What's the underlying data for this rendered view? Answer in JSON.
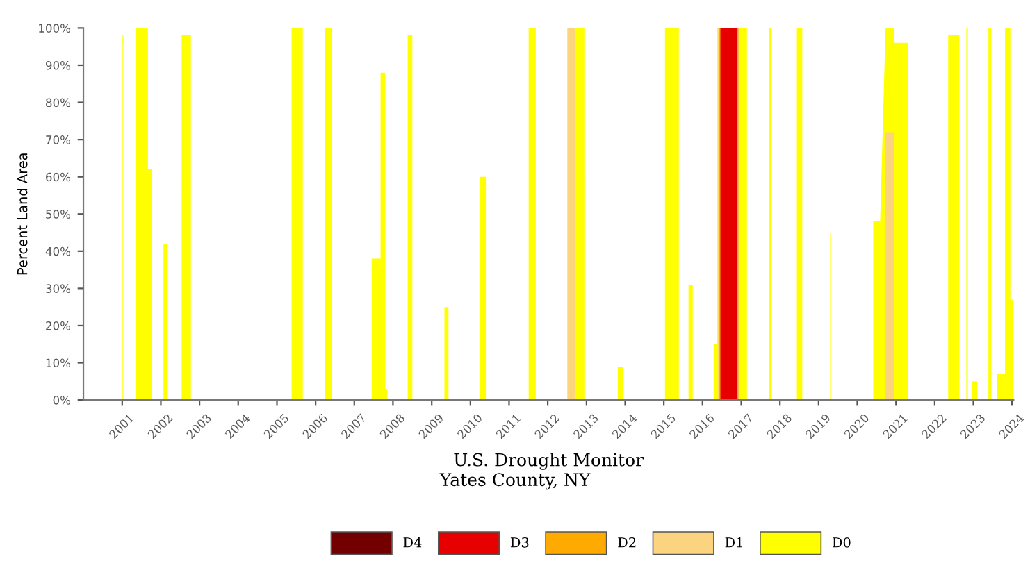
{
  "chart_data": {
    "type": "area",
    "xlabel": "U.S. Drought Monitor",
    "subtitle": "Yates County, NY",
    "ylabel": "Percent Land Area",
    "xlim": [
      "2000-01-01",
      "2024-01-15"
    ],
    "xticks": [
      {
        "value": "2001-01-01",
        "label": "2001"
      },
      {
        "value": "2002-01-01",
        "label": "2002"
      },
      {
        "value": "2003-01-01",
        "label": "2003"
      },
      {
        "value": "2004-01-01",
        "label": "2004"
      },
      {
        "value": "2005-01-01",
        "label": "2005"
      },
      {
        "value": "2006-01-01",
        "label": "2006"
      },
      {
        "value": "2007-01-01",
        "label": "2007"
      },
      {
        "value": "2008-01-01",
        "label": "2008"
      },
      {
        "value": "2009-01-01",
        "label": "2009"
      },
      {
        "value": "2010-01-01",
        "label": "2010"
      },
      {
        "value": "2011-01-01",
        "label": "2011"
      },
      {
        "value": "2012-01-01",
        "label": "2012"
      },
      {
        "value": "2013-01-01",
        "label": "2013"
      },
      {
        "value": "2014-01-01",
        "label": "2014"
      },
      {
        "value": "2015-01-01",
        "label": "2015"
      },
      {
        "value": "2016-01-01",
        "label": "2016"
      },
      {
        "value": "2017-01-01",
        "label": "2017"
      },
      {
        "value": "2018-01-01",
        "label": "2018"
      },
      {
        "value": "2019-01-01",
        "label": "2019"
      },
      {
        "value": "2020-01-01",
        "label": "2020"
      },
      {
        "value": "2021-01-01",
        "label": "2021"
      },
      {
        "value": "2022-01-01",
        "label": "2022"
      },
      {
        "value": "2023-01-01",
        "label": "2023"
      },
      {
        "value": "2024-01-01",
        "label": "2024"
      }
    ],
    "ylim": [
      0,
      100
    ],
    "yticks": [
      {
        "value": 0,
        "label": "0%"
      },
      {
        "value": 10,
        "label": "10%"
      },
      {
        "value": 20,
        "label": "20%"
      },
      {
        "value": 30,
        "label": "30%"
      },
      {
        "value": 40,
        "label": "40%"
      },
      {
        "value": 50,
        "label": "50%"
      },
      {
        "value": 60,
        "label": "60%"
      },
      {
        "value": 70,
        "label": "70%"
      },
      {
        "value": 80,
        "label": "80%"
      },
      {
        "value": 90,
        "label": "90%"
      },
      {
        "value": 100,
        "label": "100%"
      }
    ],
    "legend": "bottom",
    "grid": false,
    "series": [
      {
        "name": "D4",
        "color": "#730000"
      },
      {
        "name": "D3",
        "color": "#e60000",
        "x": [
          "2016-06-18",
          "2016-06-18",
          "2016-11-24",
          "2016-11-24"
        ],
        "values": [
          0,
          100,
          100,
          0
        ]
      },
      {
        "name": "D2",
        "color": "#ffaa00",
        "x": [
          "2016-06-04",
          "2016-06-04",
          "2016-12-05",
          "2016-12-05"
        ],
        "values": [
          0,
          100,
          100,
          0
        ]
      },
      {
        "name": "D1",
        "color": "#fcd37f",
        "x": [
          "2012-07-09",
          "2012-07-09",
          "2012-09-13",
          "2012-09-13",
          "2016-05-27",
          "2016-05-27",
          "2016-12-12",
          "2016-12-12",
          "2020-09-24",
          "2020-09-24",
          "2020-12-12",
          "2020-12-12"
        ],
        "values": [
          0,
          100,
          100,
          0,
          0,
          100,
          100,
          0,
          0,
          72,
          72,
          0
        ]
      },
      {
        "name": "D0",
        "color": "#ffff00",
        "x": [
          "2001-01-04",
          "2001-01-04",
          "2001-01-12",
          "2001-01-12",
          "2001-05-08",
          "2001-05-08",
          "2001-09-01",
          "2001-09-01",
          "2001-10-05",
          "2001-10-05",
          "2002-01-26",
          "2002-01-26",
          "2002-02-28",
          "2002-02-28",
          "2002-07-16",
          "2002-07-16",
          "2002-10-12",
          "2002-10-12",
          "2005-05-19",
          "2005-05-19",
          "2005-09-02",
          "2005-09-02",
          "2006-03-28",
          "2006-03-28",
          "2006-06-04",
          "2006-06-04",
          "2007-06-14",
          "2007-06-14",
          "2007-09-06",
          "2007-09-06",
          "2007-10-20",
          "2007-10-20",
          "2007-11-10",
          "2007-11-10",
          "2008-05-19",
          "2008-05-19",
          "2008-07-02",
          "2008-07-02",
          "2009-05-01",
          "2009-05-01",
          "2009-06-08",
          "2009-06-08",
          "2010-04-04",
          "2010-04-04",
          "2010-05-27",
          "2010-05-27",
          "2011-07-05",
          "2011-07-05",
          "2011-09-10",
          "2011-09-10",
          "2012-07-02",
          "2012-07-02",
          "2012-12-12",
          "2012-12-12",
          "2013-10-23",
          "2013-10-23",
          "2013-12-12",
          "2013-12-12",
          "2015-01-12",
          "2015-01-12",
          "2015-05-23",
          "2015-05-23",
          "2015-08-22",
          "2015-08-22",
          "2015-10-01",
          "2015-10-01",
          "2016-04-15",
          "2016-04-15",
          "2016-05-20",
          "2016-05-20",
          "2017-02-24",
          "2017-02-24",
          "2017-09-20",
          "2017-09-20",
          "2017-10-16",
          "2017-10-16",
          "2018-06-10",
          "2018-06-10",
          "2018-07-31",
          "2018-07-31",
          "2019-04-20",
          "2019-04-20",
          "2019-05-01",
          "2019-05-01",
          "2020-05-31",
          "2020-05-31",
          "2020-08-04",
          "2020-09-24",
          "2020-12-16",
          "2020-12-16",
          "2021-04-23",
          "2021-04-23",
          "2022-05-08",
          "2022-05-08",
          "2022-08-22",
          "2022-08-22",
          "2022-10-27",
          "2022-10-27",
          "2022-11-10",
          "2022-11-10",
          "2022-12-16",
          "2022-12-16",
          "2023-02-06",
          "2023-02-06",
          "2023-05-23",
          "2023-05-23",
          "2023-06-18",
          "2023-06-18",
          "2023-08-12",
          "2023-08-12",
          "2023-10-16",
          "2023-10-27",
          "2023-10-27",
          "2023-12-16",
          "2023-12-16",
          "2024-01-10",
          "2024-01-10"
        ],
        "values": [
          0,
          98,
          98,
          0,
          0,
          100,
          100,
          62,
          62,
          0,
          0,
          42,
          42,
          0,
          0,
          98,
          98,
          0,
          0,
          100,
          100,
          0,
          0,
          100,
          100,
          0,
          0,
          38,
          38,
          88,
          88,
          3,
          3,
          0,
          0,
          98,
          98,
          0,
          0,
          25,
          25,
          0,
          0,
          60,
          60,
          0,
          0,
          100,
          100,
          0,
          0,
          100,
          100,
          0,
          0,
          9,
          9,
          0,
          0,
          100,
          100,
          0,
          0,
          31,
          31,
          0,
          0,
          15,
          15,
          100,
          100,
          0,
          0,
          100,
          100,
          0,
          0,
          100,
          100,
          0,
          0,
          45,
          45,
          0,
          0,
          48,
          48,
          100,
          100,
          96,
          96,
          0,
          0,
          98,
          98,
          0,
          0,
          100,
          100,
          0,
          0,
          5,
          5,
          0,
          0,
          100,
          100,
          0,
          0,
          7,
          7,
          7,
          100,
          100,
          27,
          27,
          0
        ]
      }
    ]
  }
}
